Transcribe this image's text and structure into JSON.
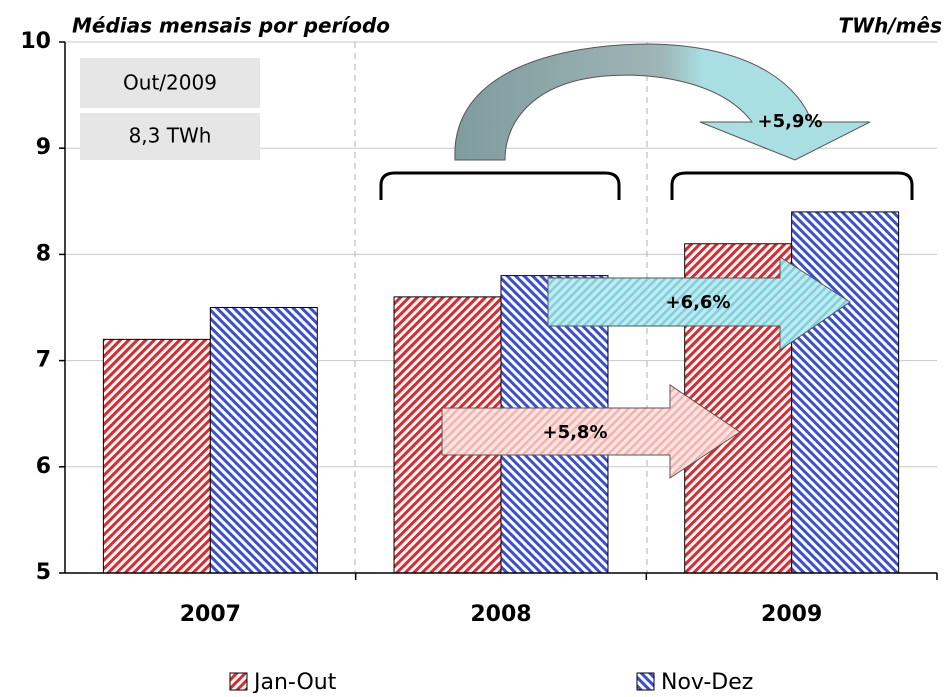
{
  "chart_data": {
    "type": "bar",
    "title": "Médias mensais por período",
    "unit_label": "TWh/mês",
    "categories": [
      "2007",
      "2008",
      "2009"
    ],
    "series": [
      {
        "name": "Jan-Out",
        "color": "#e3262b",
        "values": [
          7.2,
          7.6,
          8.1
        ]
      },
      {
        "name": "Nov-Dez",
        "color": "#3b4fd3",
        "values": [
          7.5,
          7.8,
          8.4
        ]
      }
    ],
    "ylim": [
      5,
      10
    ],
    "yticks": [
      5,
      6,
      7,
      8,
      9,
      10
    ],
    "grid": true,
    "annotations": [
      "Out/2009",
      "8,3 TWh",
      "+5,8%",
      "+6,6%",
      "+5,9%"
    ]
  }
}
